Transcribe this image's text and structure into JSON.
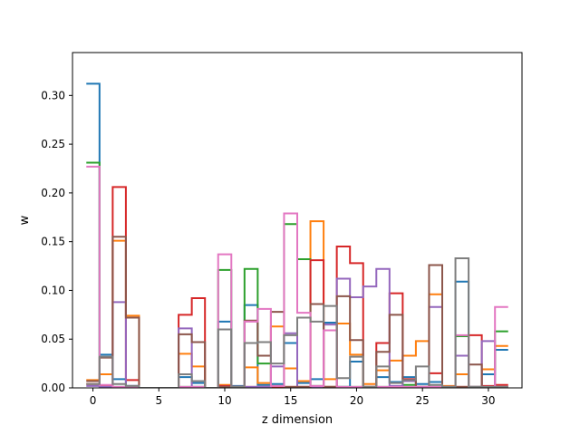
{
  "chart_data": {
    "type": "line",
    "drawstyle": "steps",
    "xlabel": "z dimension",
    "ylabel": "w",
    "xlim": [
      -1.55,
      32.55
    ],
    "ylim": [
      0,
      0.344
    ],
    "xticks": [
      0,
      5,
      10,
      15,
      20,
      25,
      30
    ],
    "yticks": [
      0.0,
      0.05,
      0.1,
      0.15,
      0.2,
      0.25,
      0.3
    ],
    "ytick_labels": [
      "0.00",
      "0.05",
      "0.10",
      "0.15",
      "0.20",
      "0.25",
      "0.30"
    ],
    "grid": false,
    "x": [
      0,
      1,
      2,
      3,
      4,
      5,
      6,
      7,
      8,
      9,
      10,
      11,
      12,
      13,
      14,
      15,
      16,
      17,
      18,
      19,
      20,
      21,
      22,
      23,
      24,
      25,
      26,
      27,
      28,
      29,
      30,
      31
    ],
    "series": [
      {
        "color": "#1f77b4",
        "values": [
          0.312,
          0.034,
          0.009,
          0.002,
          0,
          0,
          0,
          0.011,
          0.005,
          0,
          0.068,
          0.002,
          0.085,
          0.003,
          0.004,
          0.046,
          0.005,
          0.009,
          0.067,
          0.001,
          0.027,
          0.001,
          0.011,
          0.006,
          0.011,
          0.004,
          0.006,
          0.001,
          0.109,
          0.001,
          0.014,
          0.039
        ]
      },
      {
        "color": "#ff7f0e",
        "values": [
          0.008,
          0.014,
          0.151,
          0.074,
          0,
          0,
          0,
          0.035,
          0.022,
          0,
          0.003,
          0.001,
          0.021,
          0.005,
          0.063,
          0.02,
          0.007,
          0.171,
          0.009,
          0.066,
          0.034,
          0.004,
          0.018,
          0.028,
          0.033,
          0.048,
          0.096,
          0.002,
          0.014,
          0.001,
          0.019,
          0.043
        ]
      },
      {
        "color": "#2ca02c",
        "values": [
          0.231,
          0.002,
          0.001,
          0.001,
          0,
          0,
          0,
          0.001,
          0.001,
          0,
          0.121,
          0.001,
          0.122,
          0.025,
          0.002,
          0.168,
          0.132,
          0.002,
          0.001,
          0.001,
          0.001,
          0.001,
          0.001,
          0.001,
          0.003,
          0.001,
          0.001,
          0.001,
          0.053,
          0.001,
          0.001,
          0.058
        ]
      },
      {
        "color": "#d62728",
        "values": [
          0.004,
          0.002,
          0.206,
          0.008,
          0,
          0,
          0,
          0.075,
          0.092,
          0,
          0.002,
          0.001,
          0.001,
          0.001,
          0.001,
          0.001,
          0.001,
          0.131,
          0.001,
          0.145,
          0.128,
          0.001,
          0.046,
          0.097,
          0.009,
          0.001,
          0.015,
          0.001,
          0.001,
          0.054,
          0.002,
          0.003
        ]
      },
      {
        "color": "#9467bd",
        "values": [
          0.002,
          0.001,
          0.088,
          0.002,
          0,
          0,
          0,
          0.061,
          0.001,
          0,
          0.001,
          0.001,
          0.001,
          0.001,
          0.022,
          0.056,
          0.001,
          0.001,
          0.065,
          0.112,
          0.093,
          0.104,
          0.122,
          0.002,
          0.007,
          0.001,
          0.083,
          0.001,
          0.033,
          0.001,
          0.048,
          0.001
        ]
      },
      {
        "color": "#8c564b",
        "values": [
          0.007,
          0.031,
          0.155,
          0.072,
          0,
          0,
          0,
          0.055,
          0.047,
          0,
          0.001,
          0.001,
          0.069,
          0.033,
          0.078,
          0.001,
          0.001,
          0.086,
          0.001,
          0.094,
          0.049,
          0.001,
          0.037,
          0.075,
          0.008,
          0.001,
          0.126,
          0.001,
          0.001,
          0.024,
          0.001,
          0.001
        ]
      },
      {
        "color": "#e377c2",
        "values": [
          0.227,
          0.003,
          0.001,
          0.001,
          0,
          0,
          0,
          0.001,
          0.001,
          0,
          0.137,
          0.001,
          0.068,
          0.081,
          0.002,
          0.179,
          0.077,
          0.002,
          0.059,
          0.001,
          0.001,
          0.001,
          0.001,
          0.001,
          0.001,
          0.001,
          0.001,
          0.001,
          0.054,
          0.001,
          0.001,
          0.083
        ]
      },
      {
        "color": "#7f7f7f",
        "values": [
          0.004,
          0.032,
          0.004,
          0.002,
          0,
          0,
          0,
          0.014,
          0.007,
          0,
          0.06,
          0.001,
          0.046,
          0.047,
          0.025,
          0.054,
          0.072,
          0.068,
          0.084,
          0.01,
          0.032,
          0.001,
          0.022,
          0.005,
          0.008,
          0.022,
          0.003,
          0.001,
          0.133,
          0.001,
          0.001,
          0.001
        ]
      }
    ]
  }
}
